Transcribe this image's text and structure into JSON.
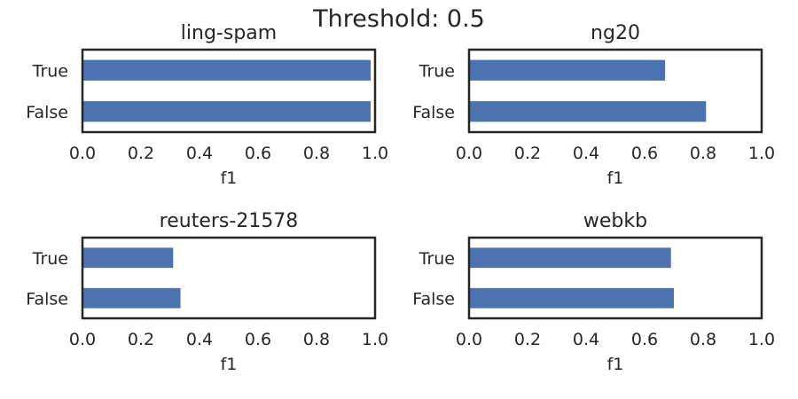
{
  "suptitle": "Threshold: 0.5",
  "chart_data": [
    {
      "type": "bar",
      "orientation": "horizontal",
      "title": "ling-spam",
      "categories": [
        "True",
        "False"
      ],
      "values": [
        0.985,
        0.985
      ],
      "xlabel": "f1",
      "ylabel": "",
      "xlim": [
        0,
        1.0
      ],
      "xticks": [
        "0.0",
        "0.2",
        "0.4",
        "0.6",
        "0.8",
        "1.0"
      ],
      "bar_color": "#4c72b0",
      "grid": false
    },
    {
      "type": "bar",
      "orientation": "horizontal",
      "title": "ng20",
      "categories": [
        "True",
        "False"
      ],
      "values": [
        0.67,
        0.81
      ],
      "xlabel": "f1",
      "ylabel": "",
      "xlim": [
        0,
        1.0
      ],
      "xticks": [
        "0.0",
        "0.2",
        "0.4",
        "0.6",
        "0.8",
        "1.0"
      ],
      "bar_color": "#4c72b0",
      "grid": false
    },
    {
      "type": "bar",
      "orientation": "horizontal",
      "title": "reuters-21578",
      "categories": [
        "True",
        "False"
      ],
      "values": [
        0.31,
        0.335
      ],
      "xlabel": "f1",
      "ylabel": "",
      "xlim": [
        0,
        1.0
      ],
      "xticks": [
        "0.0",
        "0.2",
        "0.4",
        "0.6",
        "0.8",
        "1.0"
      ],
      "bar_color": "#4c72b0",
      "grid": false
    },
    {
      "type": "bar",
      "orientation": "horizontal",
      "title": "webkb",
      "categories": [
        "True",
        "False"
      ],
      "values": [
        0.69,
        0.7
      ],
      "xlabel": "f1",
      "ylabel": "",
      "xlim": [
        0,
        1.0
      ],
      "xticks": [
        "0.0",
        "0.2",
        "0.4",
        "0.6",
        "0.8",
        "1.0"
      ],
      "bar_color": "#4c72b0",
      "grid": false
    }
  ]
}
